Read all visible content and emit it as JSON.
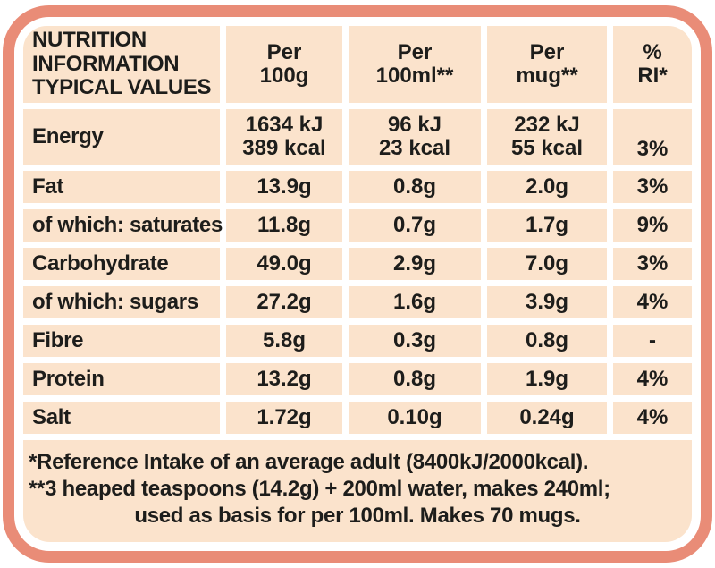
{
  "colors": {
    "border": "#e98c77",
    "cell": "#fbe3cc",
    "text": "#1d1d1b",
    "bg": "#ffffff"
  },
  "table": {
    "title": "NUTRITION\nINFORMATION\nTYPICAL VALUES",
    "columns": [
      {
        "label": "Per\n100g"
      },
      {
        "label": "Per\n100ml**"
      },
      {
        "label": "Per\nmug**"
      },
      {
        "label": "%\nRI*"
      }
    ],
    "rows": [
      {
        "label": "Energy",
        "per_100g": "1634 kJ\n389 kcal",
        "per_100ml": "96 kJ\n23 kcal",
        "per_mug": "232 kJ\n55 kcal",
        "ri": "3%"
      },
      {
        "label": "Fat",
        "per_100g": "13.9g",
        "per_100ml": "0.8g",
        "per_mug": "2.0g",
        "ri": "3%"
      },
      {
        "label": "of which: saturates",
        "per_100g": "11.8g",
        "per_100ml": "0.7g",
        "per_mug": "1.7g",
        "ri": "9%"
      },
      {
        "label": "Carbohydrate",
        "per_100g": "49.0g",
        "per_100ml": "2.9g",
        "per_mug": "7.0g",
        "ri": "3%"
      },
      {
        "label": "of which: sugars",
        "per_100g": "27.2g",
        "per_100ml": "1.6g",
        "per_mug": "3.9g",
        "ri": "4%"
      },
      {
        "label": "Fibre",
        "per_100g": "5.8g",
        "per_100ml": "0.3g",
        "per_mug": "0.8g",
        "ri": "-"
      },
      {
        "label": "Protein",
        "per_100g": "13.2g",
        "per_100ml": "0.8g",
        "per_mug": "1.9g",
        "ri": "4%"
      },
      {
        "label": "Salt",
        "per_100g": "1.72g",
        "per_100ml": "0.10g",
        "per_mug": "0.24g",
        "ri": "4%"
      }
    ],
    "footnotes": [
      "*Reference Intake of an average adult (8400kJ/2000kcal).",
      "**3 heaped teaspoons (14.2g) + 200ml water, makes 240ml;",
      "used as basis for per 100ml. Makes 70 mugs."
    ]
  }
}
